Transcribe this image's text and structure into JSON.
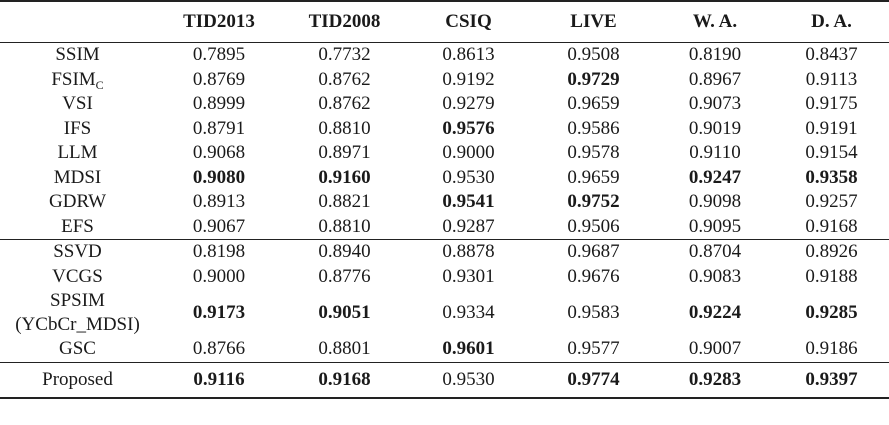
{
  "table": {
    "headers": [
      "",
      "TID2013",
      "TID2008",
      "CSIQ",
      "LIVE",
      "W. A.",
      "D. A."
    ],
    "group1": [
      {
        "method": "SSIM",
        "values": [
          "0.7895",
          "0.7732",
          "0.8613",
          "0.9508",
          "0.8190",
          "0.8437"
        ],
        "bold": [
          false,
          false,
          false,
          false,
          false,
          false
        ]
      },
      {
        "method": "FSIM",
        "method_sub": "C",
        "values": [
          "0.8769",
          "0.8762",
          "0.9192",
          "0.9729",
          "0.8967",
          "0.9113"
        ],
        "bold": [
          false,
          false,
          false,
          true,
          false,
          false
        ]
      },
      {
        "method": "VSI",
        "values": [
          "0.8999",
          "0.8762",
          "0.9279",
          "0.9659",
          "0.9073",
          "0.9175"
        ],
        "bold": [
          false,
          false,
          false,
          false,
          false,
          false
        ]
      },
      {
        "method": "IFS",
        "values": [
          "0.8791",
          "0.8810",
          "0.9576",
          "0.9586",
          "0.9019",
          "0.9191"
        ],
        "bold": [
          false,
          false,
          true,
          false,
          false,
          false
        ]
      },
      {
        "method": "LLM",
        "values": [
          "0.9068",
          "0.8971",
          "0.9000",
          "0.9578",
          "0.9110",
          "0.9154"
        ],
        "bold": [
          false,
          false,
          false,
          false,
          false,
          false
        ]
      },
      {
        "method": "MDSI",
        "values": [
          "0.9080",
          "0.9160",
          "0.9530",
          "0.9659",
          "0.9247",
          "0.9358"
        ],
        "bold": [
          true,
          true,
          false,
          false,
          true,
          true
        ]
      },
      {
        "method": "GDRW",
        "values": [
          "0.8913",
          "0.8821",
          "0.9541",
          "0.9752",
          "0.9098",
          "0.9257"
        ],
        "bold": [
          false,
          false,
          true,
          true,
          false,
          false
        ]
      },
      {
        "method": "EFS",
        "values": [
          "0.9067",
          "0.8810",
          "0.9287",
          "0.9506",
          "0.9095",
          "0.9168"
        ],
        "bold": [
          false,
          false,
          false,
          false,
          false,
          false
        ]
      }
    ],
    "group2": [
      {
        "method": "SSVD",
        "values": [
          "0.8198",
          "0.8940",
          "0.8878",
          "0.9687",
          "0.8704",
          "0.8926"
        ],
        "bold": [
          false,
          false,
          false,
          false,
          false,
          false
        ]
      },
      {
        "method": "VCGS",
        "values": [
          "0.9000",
          "0.8776",
          "0.9301",
          "0.9676",
          "0.9083",
          "0.9188"
        ],
        "bold": [
          false,
          false,
          false,
          false,
          false,
          false
        ]
      },
      {
        "method": "SPSIM",
        "method_line2": "(YCbCr_MDSI)",
        "values": [
          "0.9173",
          "0.9051",
          "0.9334",
          "0.9583",
          "0.9224",
          "0.9285"
        ],
        "bold": [
          true,
          true,
          false,
          false,
          true,
          true
        ]
      },
      {
        "method": "GSC",
        "values": [
          "0.8766",
          "0.8801",
          "0.9601",
          "0.9577",
          "0.9007",
          "0.9186"
        ],
        "bold": [
          false,
          false,
          true,
          false,
          false,
          false
        ]
      }
    ],
    "group3": [
      {
        "method": "Proposed",
        "values": [
          "0.9116",
          "0.9168",
          "0.9530",
          "0.9774",
          "0.9283",
          "0.9397"
        ],
        "bold": [
          true,
          true,
          false,
          true,
          true,
          true
        ]
      }
    ]
  }
}
